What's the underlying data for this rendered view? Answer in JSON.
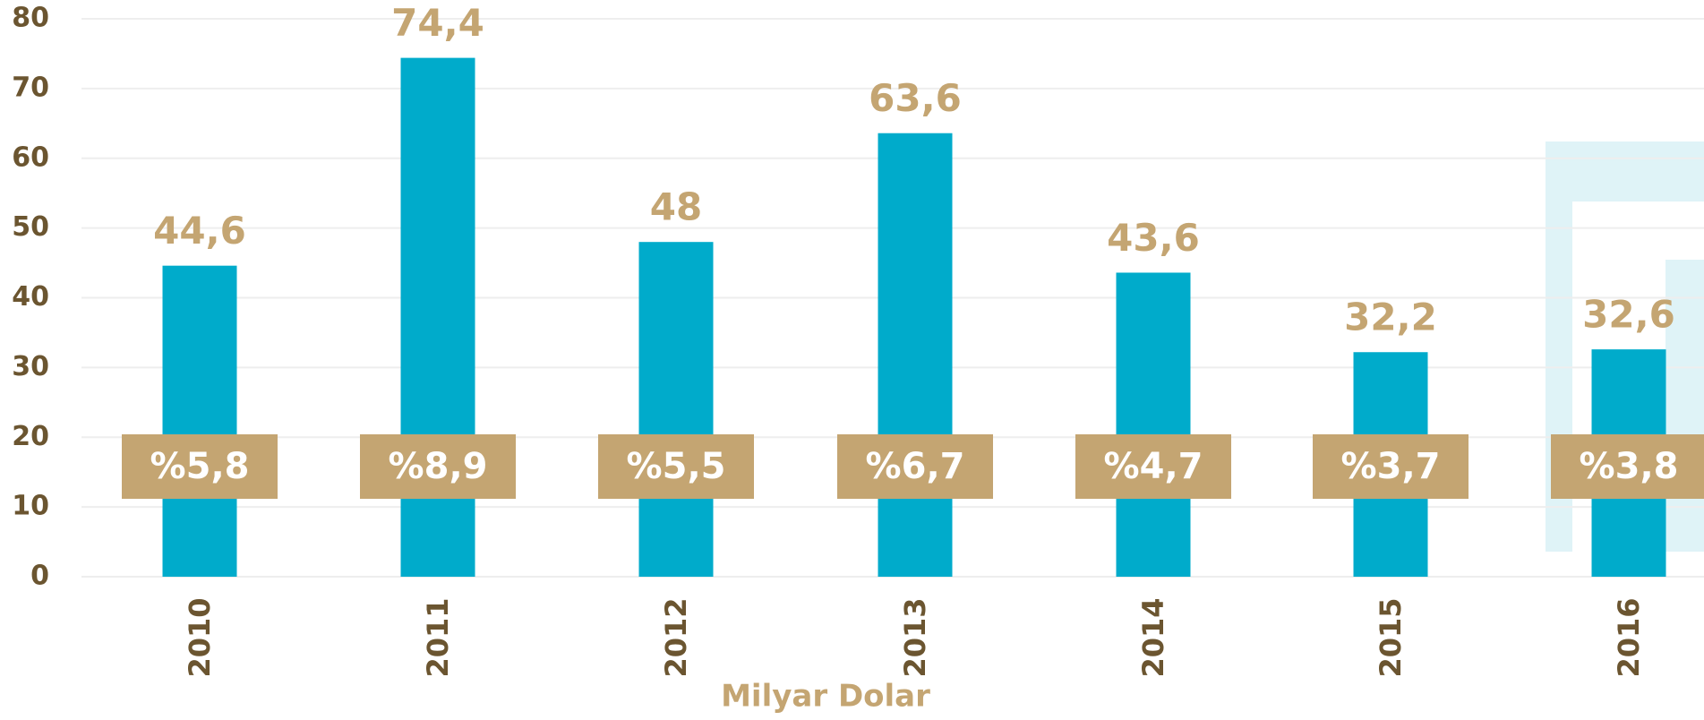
{
  "chart_data": {
    "type": "bar",
    "x_label": "Milyar Dolar",
    "categories": [
      "2010",
      "2011",
      "2012",
      "2013",
      "2014",
      "2015",
      "2016"
    ],
    "values": [
      44.6,
      74.4,
      48,
      63.6,
      43.6,
      32.2,
      32.6
    ],
    "value_labels": [
      "44,6",
      "74,4",
      "48",
      "63,6",
      "43,6",
      "32,2",
      "32,6"
    ],
    "annotations": [
      "%5,8",
      "%8,9",
      "%5,5",
      "%6,7",
      "%4,7",
      "%3,7",
      "%3,8"
    ],
    "color": "#00abcb",
    "ylim": [
      0,
      80
    ],
    "yticks": [
      0,
      10,
      20,
      30,
      40,
      50,
      60,
      70,
      80
    ],
    "grid": true
  }
}
